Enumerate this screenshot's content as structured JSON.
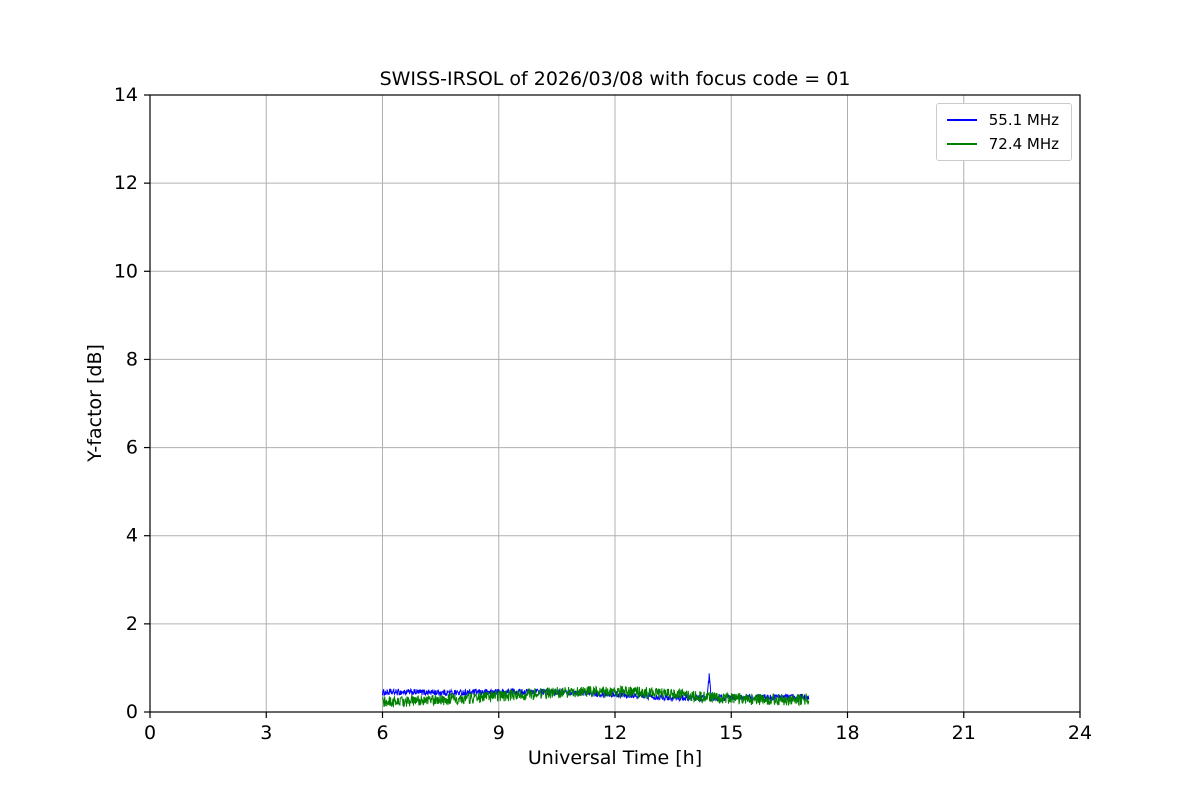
{
  "chart_data": {
    "type": "line",
    "title": "SWISS-IRSOL of 2026/03/08 with focus code = 01",
    "xlabel": "Universal Time [h]",
    "ylabel": "Y-factor [dB]",
    "xlim": [
      0,
      24
    ],
    "ylim": [
      0,
      14
    ],
    "xticks": [
      0,
      3,
      6,
      9,
      12,
      15,
      18,
      21,
      24
    ],
    "yticks": [
      0,
      2,
      4,
      6,
      8,
      10,
      12,
      14
    ],
    "grid": true,
    "grid_color": "#b0b0b0",
    "axis_color": "#000000",
    "legend_position": "upper right",
    "series": [
      {
        "name": "55.1 MHz",
        "color": "#0000ff",
        "x_start": 6.0,
        "x_end": 17.0,
        "noise_amplitude": 0.07,
        "anchor_points": [
          [
            6.0,
            0.44
          ],
          [
            6.5,
            0.45
          ],
          [
            7.0,
            0.45
          ],
          [
            7.5,
            0.44
          ],
          [
            8.0,
            0.44
          ],
          [
            8.5,
            0.45
          ],
          [
            9.0,
            0.46
          ],
          [
            9.5,
            0.46
          ],
          [
            10.0,
            0.46
          ],
          [
            10.5,
            0.45
          ],
          [
            11.0,
            0.44
          ],
          [
            11.5,
            0.42
          ],
          [
            12.0,
            0.4
          ],
          [
            12.5,
            0.38
          ],
          [
            13.0,
            0.35
          ],
          [
            13.5,
            0.33
          ],
          [
            14.0,
            0.32
          ],
          [
            14.38,
            0.32
          ],
          [
            14.43,
            0.82
          ],
          [
            14.48,
            0.32
          ],
          [
            15.0,
            0.32
          ],
          [
            15.5,
            0.33
          ],
          [
            16.0,
            0.33
          ],
          [
            16.5,
            0.34
          ],
          [
            17.0,
            0.35
          ]
        ]
      },
      {
        "name": "72.4 MHz",
        "color": "#008000",
        "x_start": 6.0,
        "x_end": 17.0,
        "noise_amplitude": 0.13,
        "anchor_points": [
          [
            6.0,
            0.22
          ],
          [
            6.5,
            0.24
          ],
          [
            7.0,
            0.26
          ],
          [
            7.5,
            0.28
          ],
          [
            8.0,
            0.3
          ],
          [
            8.5,
            0.33
          ],
          [
            9.0,
            0.36
          ],
          [
            9.5,
            0.39
          ],
          [
            10.0,
            0.42
          ],
          [
            10.5,
            0.44
          ],
          [
            11.0,
            0.46
          ],
          [
            11.5,
            0.46
          ],
          [
            12.0,
            0.46
          ],
          [
            12.5,
            0.45
          ],
          [
            13.0,
            0.43
          ],
          [
            13.5,
            0.4
          ],
          [
            14.0,
            0.36
          ],
          [
            14.5,
            0.33
          ],
          [
            15.0,
            0.31
          ],
          [
            15.5,
            0.29
          ],
          [
            16.0,
            0.28
          ],
          [
            16.5,
            0.28
          ],
          [
            17.0,
            0.29
          ]
        ]
      }
    ]
  }
}
